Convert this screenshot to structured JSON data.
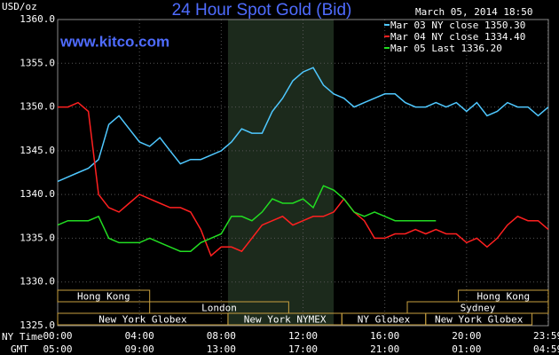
{
  "chart_data": {
    "type": "line",
    "title": "24 Hour Spot Gold (Bid)",
    "website": "www.kitco.com",
    "timestamp": "March 05, 2014 18:50",
    "ylabel": "USD/oz",
    "xlabel": "NY Time",
    "x2label": "GMT",
    "xlim": [
      0,
      24
    ],
    "ylim": [
      1325,
      1360
    ],
    "yticks": [
      {
        "value": 1325,
        "label": "1325.0"
      },
      {
        "value": 1330,
        "label": "1330.0"
      },
      {
        "value": 1335,
        "label": "1335.0"
      },
      {
        "value": 1340,
        "label": "1340.0"
      },
      {
        "value": 1345,
        "label": "1345.0"
      },
      {
        "value": 1350,
        "label": "1350.0"
      },
      {
        "value": 1355,
        "label": "1355.0"
      },
      {
        "value": 1360,
        "label": "1360.0"
      }
    ],
    "xticks": [
      {
        "value": 0,
        "label": "00:00"
      },
      {
        "value": 4,
        "label": "04:00"
      },
      {
        "value": 8,
        "label": "08:00"
      },
      {
        "value": 12,
        "label": "12:00"
      },
      {
        "value": 16,
        "label": "16:00"
      },
      {
        "value": 20,
        "label": "20:00"
      },
      {
        "value": 23.98,
        "label": "23:59"
      }
    ],
    "x2ticks": [
      {
        "value": 0,
        "label": "05:00"
      },
      {
        "value": 4,
        "label": "09:00"
      },
      {
        "value": 8,
        "label": "13:00"
      },
      {
        "value": 12,
        "label": "17:00"
      },
      {
        "value": 16,
        "label": "21:00"
      },
      {
        "value": 20,
        "label": "01:00"
      },
      {
        "value": 23.98,
        "label": "04:59"
      }
    ],
    "grid": true,
    "highlight": [
      8.33,
      13.5
    ],
    "session_rows": [
      [
        {
          "label": "Hong Kong",
          "start": 0,
          "end": 4.5
        },
        {
          "label": "Hong Kong",
          "start": 19.6,
          "end": 24
        }
      ],
      [
        {
          "label": "London",
          "start": 4.5,
          "end": 11.3
        },
        {
          "label": "Sydney",
          "start": 17.1,
          "end": 24
        }
      ],
      [
        {
          "label": "New York Globex",
          "start": 0,
          "end": 8.33
        },
        {
          "label": "New York NYMEX",
          "start": 8.33,
          "end": 13.9
        },
        {
          "label": "NY Globex",
          "start": 13.9,
          "end": 18
        },
        {
          "label": "New York Globex",
          "start": 18,
          "end": 23.2
        }
      ]
    ],
    "x": [
      0,
      0.5,
      1,
      1.5,
      2,
      2.5,
      3,
      3.5,
      4,
      4.5,
      5,
      5.5,
      6,
      6.5,
      7,
      7.5,
      8,
      8.5,
      9,
      9.5,
      10,
      10.5,
      11,
      11.5,
      12,
      12.5,
      13,
      13.5,
      14,
      14.5,
      15,
      15.5,
      16,
      16.5,
      17,
      17.5,
      18,
      18.5,
      19,
      19.5,
      20,
      20.5,
      21,
      21.5,
      22,
      22.5,
      23,
      23.5,
      24
    ],
    "series": [
      {
        "name": "Mar 03 NY close 1350.30",
        "color": "#4fc8ff",
        "values": [
          1341.5,
          1342,
          1342.5,
          1343,
          1344,
          1348,
          1349,
          1347.5,
          1346,
          1345.5,
          1346.5,
          1345,
          1343.5,
          1344,
          1344,
          1344.5,
          1345,
          1346,
          1347.5,
          1347,
          1347,
          1349.5,
          1351,
          1353,
          1354,
          1354.5,
          1352.5,
          1351.5,
          1351,
          1350,
          1350.5,
          1351,
          1351.5,
          1351.5,
          1350.5,
          1350,
          1350,
          1350.5,
          1350,
          1350.5,
          1349.5,
          1350.5,
          1349,
          1349.5,
          1350.5,
          1350,
          1350,
          1349,
          1350
        ]
      },
      {
        "name": "Mar 04 NY close 1334.40",
        "color": "#ff2020",
        "values": [
          1350,
          1350,
          1350.5,
          1349.5,
          1340,
          1338.5,
          1338,
          1339,
          1340,
          1339.5,
          1339,
          1338.5,
          1338.5,
          1338,
          1336,
          1333,
          1334,
          1334,
          1333.5,
          1335,
          1336.5,
          1337,
          1337.5,
          1336.5,
          1337,
          1337.5,
          1337.5,
          1338,
          1339.5,
          1338,
          1337,
          1335,
          1335,
          1335.5,
          1335.5,
          1336,
          1335.5,
          1336,
          1335.5,
          1335.5,
          1334.5,
          1335,
          1334,
          1335,
          1336.5,
          1337.5,
          1337,
          1337,
          1336
        ]
      },
      {
        "name": "Mar 05 Last 1336.20",
        "color": "#22dd22",
        "values": [
          1336.5,
          1337,
          1337,
          1337,
          1337.5,
          1335,
          1334.5,
          1334.5,
          1334.5,
          1335,
          1334.5,
          1334,
          1333.5,
          1333.5,
          1334.5,
          1335,
          1335.5,
          1337.5,
          1337.5,
          1337,
          1338,
          1339.5,
          1339,
          1339,
          1339.5,
          1338.5,
          1341,
          1340.5,
          1339.5,
          1338,
          1337.5,
          1338,
          1337.5,
          1337,
          1337,
          1337,
          1337,
          1337,
          null,
          null,
          null,
          null,
          null,
          null,
          null,
          null,
          null,
          null,
          null
        ]
      }
    ]
  }
}
